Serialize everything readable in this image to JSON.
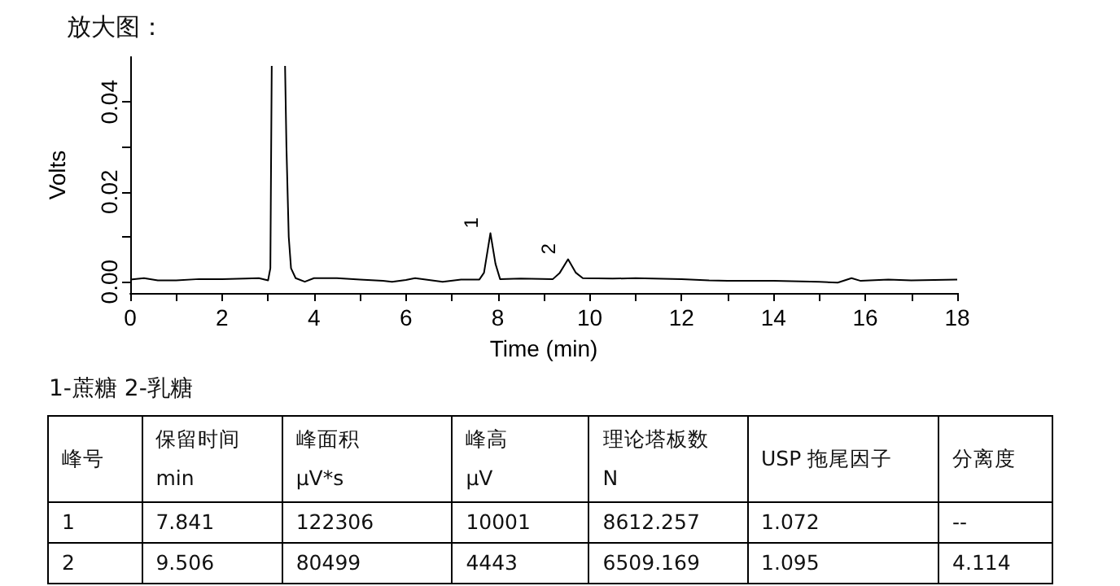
{
  "chart_data": [
    {
      "type": "line",
      "title": "放大图：",
      "xlabel": "Time (min)",
      "ylabel": "Volts",
      "color": "#000000",
      "x": [
        0,
        0.3,
        0.6,
        1,
        1.5,
        2,
        2.5,
        2.8,
        3.0,
        3.05,
        3.08,
        3.2,
        3.37,
        3.4,
        3.45,
        3.5,
        3.6,
        3.8,
        4,
        4.5,
        5,
        5.5,
        5.7,
        6,
        6.2,
        6.8,
        7.2,
        7.6,
        7.7,
        7.84,
        7.95,
        8.05,
        8.5,
        9.2,
        9.35,
        9.53,
        9.7,
        9.85,
        10.5,
        11,
        12,
        12.6,
        13,
        14,
        15,
        15.4,
        15.7,
        15.9,
        16.5,
        17,
        18
      ],
      "values": [
        0.0005,
        0.0008,
        0.0003,
        0.0003,
        0.0006,
        0.0006,
        0.0007,
        0.0008,
        0.0003,
        0.003,
        0.048,
        null,
        0.048,
        0.03,
        0.01,
        0.003,
        0.0008,
        0,
        0.0008,
        0.0008,
        0.0005,
        0.0002,
        0,
        0.0004,
        0.0008,
        0,
        0.0005,
        0.0005,
        0.002,
        0.0108,
        0.004,
        0.0006,
        0.0007,
        0.0006,
        0.002,
        0.005,
        0.002,
        0.0008,
        0.0007,
        0.0008,
        0.0006,
        0.0003,
        0.0002,
        0.0002,
        0,
        -0.0002,
        0.0008,
        0.0002,
        0.0005,
        0.0003,
        0.0005
      ],
      "xlim": [
        0,
        18
      ],
      "xticks": [
        0,
        {
          "value": 1,
          "label": null
        },
        2,
        {
          "value": 3,
          "label": null
        },
        4,
        {
          "value": 5,
          "label": null
        },
        6,
        {
          "value": 7,
          "label": null
        },
        8,
        {
          "value": 9,
          "label": null
        },
        10,
        {
          "value": 11,
          "label": null
        },
        12,
        {
          "value": 13,
          "label": null
        },
        14,
        {
          "value": 15,
          "label": null
        },
        16,
        {
          "value": 17,
          "label": null
        },
        18
      ],
      "ylim": [
        -0.0025,
        0.05
      ],
      "yticks": [
        {
          "value": 0,
          "label": "0.00"
        },
        {
          "value": 0.01,
          "label": null
        },
        0.02,
        {
          "value": 0.03,
          "label": null
        },
        0.04
      ],
      "annotations": [
        {
          "text": "1",
          "x": 7.84,
          "y": 0.0108
        },
        {
          "text": "2",
          "x": 9.53,
          "y": 0.005
        }
      ],
      "grid": false,
      "marker": "none",
      "line_style": "solid"
    },
    {
      "type": "other",
      "annotations": [
        "1-蔗糖 2-乳糖",
        "峰号",
        "保留时间\nmin",
        "峰面积\nμV*s",
        "峰高\nμV",
        "理论塔板数\nN",
        "USP 拖尾因子",
        "分离度",
        "1",
        "7.841",
        "122306",
        "10001",
        "8612.257",
        "1.072",
        "--",
        "2",
        "9.506",
        "80499",
        "4443",
        "6509.169",
        "1.095",
        "4.114"
      ]
    }
  ]
}
